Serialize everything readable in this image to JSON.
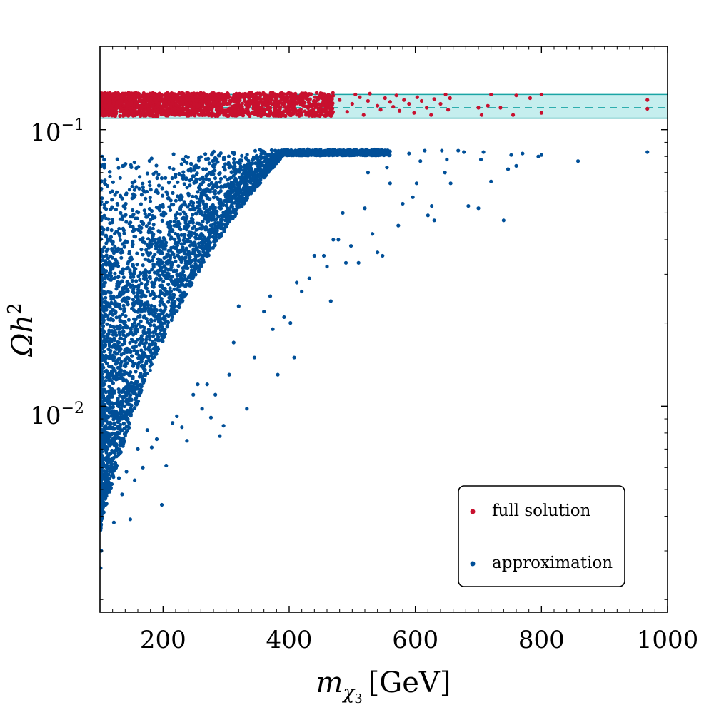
{
  "chart_data": {
    "type": "scatter",
    "title": "",
    "xlabel": {
      "main": "m",
      "sub": "χ",
      "subsub": "3",
      "unit": "[GeV]"
    },
    "ylabel": {
      "main": "Ωh",
      "sup": "2"
    },
    "xlim": [
      100,
      1000
    ],
    "ylim": [
      0.0018,
      0.2
    ],
    "yscale": "log",
    "x_ticks": [
      200,
      400,
      600,
      800,
      1000
    ],
    "x_tick_labels": [
      "200",
      "400",
      "600",
      "800",
      "1000"
    ],
    "y_ticks": [
      {
        "value": 0.1,
        "base": "10",
        "exp": "−1"
      },
      {
        "value": 0.01,
        "base": "10",
        "exp": "−2"
      }
    ],
    "band": {
      "low": 0.11,
      "high": 0.134,
      "central": 0.12,
      "color": "#c5eeee",
      "line_color": "#1aa5a5"
    },
    "legend": {
      "position": "lower-right",
      "entries": [
        {
          "label": "full solution",
          "color": "#c8102e"
        },
        {
          "label": "approximation",
          "color": "#004f98"
        }
      ]
    },
    "series": [
      {
        "name": "full solution",
        "color": "#c8102e",
        "points": [
          [
            480,
            0.128
          ],
          [
            492,
            0.116
          ],
          [
            500,
            0.124
          ],
          [
            505,
            0.134
          ],
          [
            512,
            0.131
          ],
          [
            518,
            0.113
          ],
          [
            525,
            0.127
          ],
          [
            528,
            0.135
          ],
          [
            540,
            0.122
          ],
          [
            545,
            0.118
          ],
          [
            552,
            0.13
          ],
          [
            560,
            0.126
          ],
          [
            565,
            0.121
          ],
          [
            570,
            0.133
          ],
          [
            575,
            0.117
          ],
          [
            582,
            0.128
          ],
          [
            590,
            0.124
          ],
          [
            598,
            0.115
          ],
          [
            603,
            0.131
          ],
          [
            610,
            0.127
          ],
          [
            618,
            0.12
          ],
          [
            625,
            0.113
          ],
          [
            630,
            0.129
          ],
          [
            640,
            0.124
          ],
          [
            648,
            0.134
          ],
          [
            652,
            0.118
          ],
          [
            655,
            0.13
          ],
          [
            700,
            0.12
          ],
          [
            705,
            0.113
          ],
          [
            715,
            0.122
          ],
          [
            720,
            0.134
          ],
          [
            735,
            0.12
          ],
          [
            755,
            0.113
          ],
          [
            760,
            0.133
          ],
          [
            782,
            0.13
          ],
          [
            800,
            0.134
          ],
          [
            800,
            0.115
          ],
          [
            968,
            0.128
          ],
          [
            968,
            0.119
          ]
        ],
        "dense_region": {
          "x": [
            100,
            470
          ],
          "y": [
            0.112,
            0.136
          ],
          "count": 1900
        }
      },
      {
        "name": "approximation",
        "color": "#004f98",
        "points": [
          [
            968,
            0.083
          ],
          [
            858,
            0.077
          ],
          [
            800,
            0.081
          ],
          [
            795,
            0.08
          ],
          [
            770,
            0.082
          ],
          [
            760,
            0.074
          ],
          [
            752,
            0.081
          ],
          [
            747,
            0.072
          ],
          [
            740,
            0.047
          ],
          [
            720,
            0.065
          ],
          [
            708,
            0.083
          ],
          [
            704,
            0.078
          ],
          [
            700,
            0.052
          ],
          [
            684,
            0.053
          ],
          [
            677,
            0.083
          ],
          [
            668,
            0.084
          ],
          [
            656,
            0.064
          ],
          [
            650,
            0.078
          ],
          [
            647,
            0.07
          ],
          [
            642,
            0.084
          ],
          [
            630,
            0.047
          ],
          [
            626,
            0.053
          ],
          [
            620,
            0.049
          ],
          [
            615,
            0.084
          ],
          [
            608,
            0.077
          ],
          [
            602,
            0.064
          ],
          [
            596,
            0.057
          ],
          [
            590,
            0.082
          ],
          [
            580,
            0.054
          ],
          [
            573,
            0.045
          ],
          [
            560,
            0.064
          ],
          [
            555,
            0.073
          ],
          [
            548,
            0.035
          ],
          [
            540,
            0.036
          ],
          [
            532,
            0.042
          ],
          [
            525,
            0.07
          ],
          [
            520,
            0.052
          ],
          [
            510,
            0.033
          ],
          [
            498,
            0.038
          ],
          [
            490,
            0.033
          ],
          [
            485,
            0.05
          ],
          [
            478,
            0.04
          ],
          [
            470,
            0.04
          ],
          [
            466,
            0.024
          ],
          [
            460,
            0.032
          ],
          [
            455,
            0.035
          ],
          [
            440,
            0.035
          ],
          [
            432,
            0.029
          ],
          [
            420,
            0.026
          ],
          [
            412,
            0.028
          ],
          [
            408,
            0.015
          ],
          [
            402,
            0.02
          ],
          [
            392,
            0.021
          ],
          [
            382,
            0.013
          ],
          [
            374,
            0.019
          ],
          [
            370,
            0.025
          ],
          [
            360,
            0.022
          ],
          [
            345,
            0.015
          ],
          [
            333,
            0.0098
          ],
          [
            320,
            0.023
          ],
          [
            312,
            0.017
          ],
          [
            305,
            0.013
          ],
          [
            296,
            0.0085
          ],
          [
            290,
            0.0078
          ],
          [
            283,
            0.011
          ],
          [
            276,
            0.0091
          ],
          [
            270,
            0.012
          ],
          [
            262,
            0.0098
          ],
          [
            255,
            0.012
          ],
          [
            248,
            0.011
          ],
          [
            238,
            0.0075
          ],
          [
            230,
            0.0084
          ],
          [
            222,
            0.0092
          ],
          [
            215,
            0.0087
          ],
          [
            205,
            0.0061
          ],
          [
            198,
            0.0044
          ],
          [
            190,
            0.0076
          ],
          [
            182,
            0.0071
          ],
          [
            175,
            0.0082
          ],
          [
            168,
            0.006
          ],
          [
            160,
            0.007
          ],
          [
            155,
            0.0054
          ],
          [
            148,
            0.0039
          ],
          [
            142,
            0.0058
          ],
          [
            135,
            0.0048
          ],
          [
            130,
            0.0055
          ],
          [
            122,
            0.0038
          ],
          [
            118,
            0.0062
          ],
          [
            114,
            0.0051
          ],
          [
            108,
            0.0048
          ],
          [
            104,
            0.0043
          ],
          [
            102,
            0.003
          ],
          [
            101,
            0.0026
          ]
        ],
        "dense_region": {
          "x": [
            100,
            560
          ],
          "y_max": 0.085,
          "y_min_at_x100": 0.0035,
          "count": 4200
        }
      }
    ]
  }
}
